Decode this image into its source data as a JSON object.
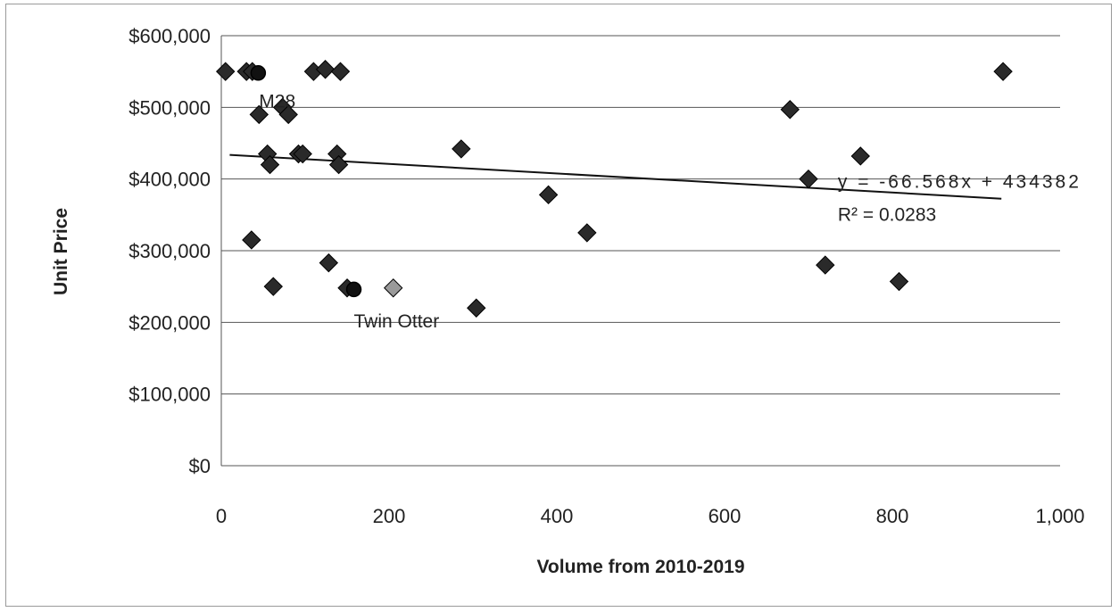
{
  "chart_data": {
    "type": "scatter",
    "title": "",
    "xlabel": "Volume from 2010-2019",
    "ylabel": "Unit Price",
    "xlim": [
      0,
      1000
    ],
    "ylim": [
      0,
      600000
    ],
    "x_ticks": [
      0,
      200,
      400,
      600,
      800,
      1000
    ],
    "x_tick_labels": [
      "0",
      "200",
      "400",
      "600",
      "800",
      "1,000"
    ],
    "y_ticks": [
      0,
      100000,
      200000,
      300000,
      400000,
      500000,
      600000
    ],
    "y_tick_labels": [
      "$0",
      "$100,000",
      "$200,000",
      "$300,000",
      "$400,000",
      "$500,000",
      "$600,000"
    ],
    "grid": "horizontal",
    "legend": "none",
    "marker_color": "#2a2a2a",
    "highlight_marker_color": "#111111",
    "light_marker_color": "#9a9a9a",
    "series": [
      {
        "points": [
          {
            "x": 5,
            "y": 550000
          },
          {
            "x": 30,
            "y": 550000
          },
          {
            "x": 37,
            "y": 550000
          },
          {
            "x": 45,
            "y": 490000
          },
          {
            "x": 55,
            "y": 435000
          },
          {
            "x": 58,
            "y": 420000
          },
          {
            "x": 36,
            "y": 315000
          },
          {
            "x": 62,
            "y": 250000
          },
          {
            "x": 73,
            "y": 500000
          },
          {
            "x": 80,
            "y": 490000
          },
          {
            "x": 92,
            "y": 435000
          },
          {
            "x": 97,
            "y": 435000
          },
          {
            "x": 110,
            "y": 550000
          },
          {
            "x": 124,
            "y": 553000
          },
          {
            "x": 142,
            "y": 550000
          },
          {
            "x": 138,
            "y": 435000
          },
          {
            "x": 140,
            "y": 420000
          },
          {
            "x": 128,
            "y": 283000
          },
          {
            "x": 150,
            "y": 248000
          },
          {
            "x": 286,
            "y": 442000
          },
          {
            "x": 304,
            "y": 220000
          },
          {
            "x": 390,
            "y": 378000
          },
          {
            "x": 436,
            "y": 325000
          },
          {
            "x": 678,
            "y": 497000
          },
          {
            "x": 700,
            "y": 400000
          },
          {
            "x": 720,
            "y": 280000
          },
          {
            "x": 762,
            "y": 432000
          },
          {
            "x": 808,
            "y": 257000
          },
          {
            "x": 932,
            "y": 550000
          }
        ]
      },
      {
        "style": "light",
        "points": [
          {
            "x": 205,
            "y": 248000
          }
        ]
      },
      {
        "style": "highlight",
        "points": [
          {
            "x": 44,
            "y": 548000
          },
          {
            "x": 158,
            "y": 246000
          }
        ]
      }
    ],
    "trendline": {
      "slope": -66.568,
      "intercept": 434382,
      "x_start": 10,
      "x_end": 930
    },
    "annotations": [
      {
        "text": "M28",
        "x": 45,
        "y": 500000
      },
      {
        "text": "Twin Otter",
        "x": 158,
        "y": 193000
      },
      {
        "text": "y = -66.568x + 434382",
        "x": 735,
        "y": 388000
      },
      {
        "text": "R² = 0.0283",
        "x": 735,
        "y": 342000
      }
    ]
  }
}
